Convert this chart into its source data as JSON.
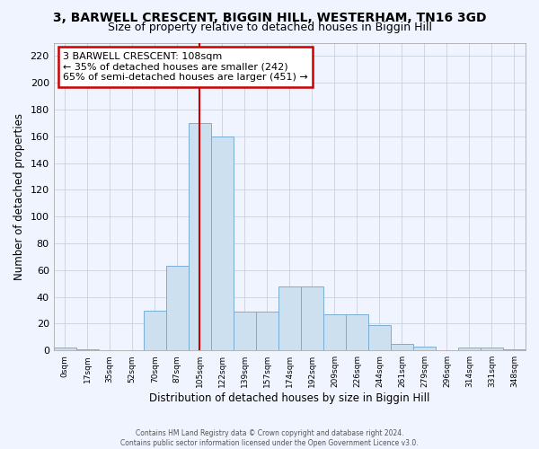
{
  "title": "3, BARWELL CRESCENT, BIGGIN HILL, WESTERHAM, TN16 3GD",
  "subtitle": "Size of property relative to detached houses in Biggin Hill",
  "xlabel": "Distribution of detached houses by size in Biggin Hill",
  "ylabel": "Number of detached properties",
  "bin_labels": [
    "0sqm",
    "17sqm",
    "35sqm",
    "52sqm",
    "70sqm",
    "87sqm",
    "105sqm",
    "122sqm",
    "139sqm",
    "157sqm",
    "174sqm",
    "192sqm",
    "209sqm",
    "226sqm",
    "244sqm",
    "261sqm",
    "279sqm",
    "296sqm",
    "314sqm",
    "331sqm",
    "348sqm"
  ],
  "bar_heights": [
    2,
    1,
    0,
    0,
    30,
    63,
    170,
    160,
    29,
    29,
    48,
    48,
    27,
    27,
    19,
    5,
    3,
    0,
    2,
    2,
    1
  ],
  "bar_color": "#cce0f0",
  "bar_edge_color": "#7aadd4",
  "vline_x_index": 6.0,
  "annotation_text": "3 BARWELL CRESCENT: 108sqm\n← 35% of detached houses are smaller (242)\n65% of semi-detached houses are larger (451) →",
  "annotation_box_color": "#ffffff",
  "annotation_box_edge_color": "#cc0000",
  "vline_color": "#cc0000",
  "ylim": [
    0,
    230
  ],
  "yticks": [
    0,
    20,
    40,
    60,
    80,
    100,
    120,
    140,
    160,
    180,
    200,
    220
  ],
  "footer_line1": "Contains HM Land Registry data © Crown copyright and database right 2024.",
  "footer_line2": "Contains public sector information licensed under the Open Government Licence v3.0.",
  "bg_color": "#f0f4ff",
  "title_fontsize": 10,
  "subtitle_fontsize": 9
}
